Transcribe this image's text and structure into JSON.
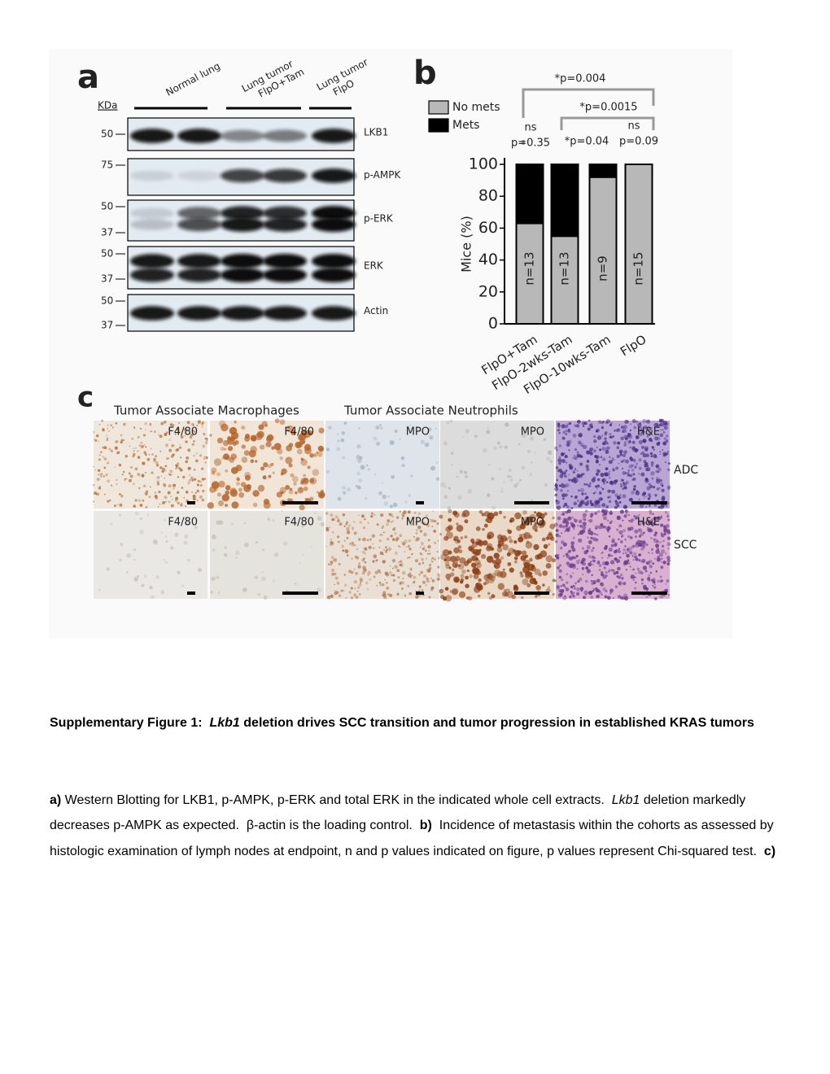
{
  "panel_a": {
    "letter": "a",
    "unit": "KDa",
    "lane_groups": [
      "Normal lung",
      "Lung tumor FlpO+Tam",
      "Lung tumor FlpO"
    ],
    "rows": [
      {
        "label": "LKB1",
        "markers": [
          "50"
        ]
      },
      {
        "label": "p-AMPK",
        "markers": [
          "75"
        ]
      },
      {
        "label": "p-ERK",
        "markers": [
          "50",
          "37"
        ]
      },
      {
        "label": "ERK",
        "markers": [
          "50",
          "37"
        ]
      },
      {
        "label": "Actin",
        "markers": [
          "50",
          "37"
        ]
      }
    ]
  },
  "chart_data": {
    "type": "stacked-bar",
    "letter": "b",
    "y_label": "Mice (%)",
    "categories": [
      "FlpO+Tam",
      "FlpO-2wks-Tam",
      "FlpO-10wks-Tam",
      "FlpO"
    ],
    "series": [
      {
        "name": "No mets",
        "color": "#b8b8b8",
        "values": [
          63,
          55,
          92,
          100
        ]
      },
      {
        "name": "Mets",
        "color": "#000000",
        "values": [
          37,
          45,
          8,
          0
        ]
      }
    ],
    "bar_annotations": [
      "n=13",
      "n=13",
      "n=9",
      "n=15"
    ],
    "significance": [
      "*p=0.004",
      "*p=0.0015",
      "ns",
      "p=0.35",
      "*p=0.04",
      "ns",
      "p=0.09"
    ],
    "ylim": [
      0,
      100
    ],
    "yticks": [
      0,
      20,
      40,
      60,
      80,
      100
    ],
    "legend": "top-left"
  },
  "panel_c": {
    "letter": "c",
    "headers": [
      "Tumor  Associate Macrophages",
      "Tumor  Associate Neutrophils"
    ],
    "rows": [
      {
        "label": "ADC",
        "stains": [
          "F4/80",
          "F4/80",
          "MPO",
          "MPO",
          "H&E"
        ]
      },
      {
        "label": "SCC",
        "stains": [
          "F4/80",
          "F4/80",
          "MPO",
          "MPO",
          "H&E"
        ]
      }
    ]
  },
  "caption": {
    "title": [
      "Supplementary Figure 1:  ",
      "Lkb1",
      " deletion drives SCC transition and tumor progression in established KRAS tumors"
    ],
    "body": [
      "a)",
      " Western Blotting for LKB1, p-AMPK, p-ERK and total ERK in the indicated whole cell extracts.  ",
      "Lkb1",
      " deletion markedly decreases p-AMPK as expected.  β-actin is the loading control.  ",
      "b)",
      "  Incidence of metastasis within the cohorts as assessed by histologic examination of lymph nodes at endpoint, n and p values indicated on figure, p values represent Chi-squared test.  ",
      "c)"
    ]
  }
}
